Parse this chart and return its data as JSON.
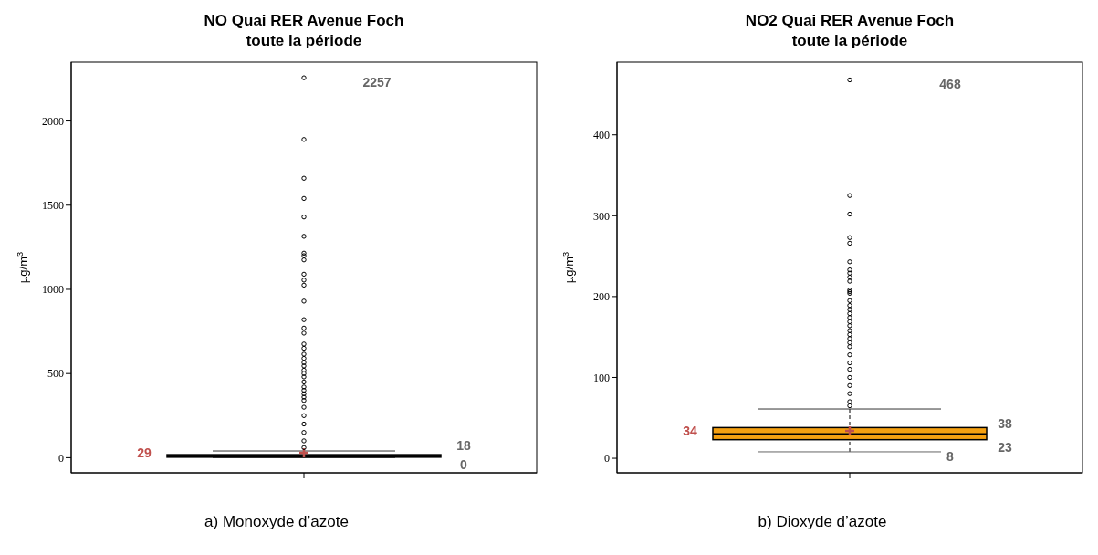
{
  "chart_data": [
    {
      "type": "box",
      "title": "NO Quai RER Avenue Foch\ntoute la période",
      "ylabel": "µg/m$^{3}$",
      "xlabel": "a) Monoxyde d’azote",
      "categories": [
        null
      ],
      "color": "#000000",
      "ylim": [
        -90,
        2350
      ],
      "yticks": [
        0,
        500,
        1000,
        1500,
        2000
      ],
      "grid": false,
      "boxes": [
        {
          "low": 0,
          "q1": 3,
          "median": 8,
          "q3": 18,
          "high": 40,
          "mean": 29,
          "outliers": [
            2257,
            1890,
            1660,
            1540,
            1430,
            1315,
            1215,
            1200,
            1175,
            1090,
            1055,
            1025,
            930,
            820,
            770,
            740,
            675,
            650,
            615,
            590,
            565,
            545,
            520,
            500,
            480,
            450,
            420,
            400,
            380,
            360,
            340,
            300,
            250,
            200,
            150,
            100,
            60
          ]
        }
      ],
      "annotations": [
        "2257",
        "29",
        "0",
        "18"
      ]
    },
    {
      "type": "box",
      "title": "NO2 Quai RER Avenue Foch\ntoute la période",
      "ylabel": "µg/m$^{3}$",
      "xlabel": "b) Dioxyde d’azote",
      "categories": [
        null
      ],
      "color": "#f5a011",
      "ylim": [
        -18,
        490
      ],
      "yticks": [
        0,
        100,
        200,
        300,
        400
      ],
      "grid": false,
      "boxes": [
        {
          "low": 8,
          "q1": 23,
          "median": 30,
          "q3": 38,
          "high": 61,
          "mean": 34,
          "outliers": [
            468,
            325,
            302,
            273,
            266,
            243,
            233,
            229,
            224,
            219,
            208,
            206,
            204,
            195,
            189,
            184,
            179,
            174,
            169,
            164,
            158,
            153,
            148,
            143,
            138,
            128,
            118,
            110,
            100,
            90,
            80,
            70,
            65
          ]
        }
      ],
      "annotations": [
        "468",
        "34",
        "38",
        "23",
        "8"
      ]
    }
  ]
}
